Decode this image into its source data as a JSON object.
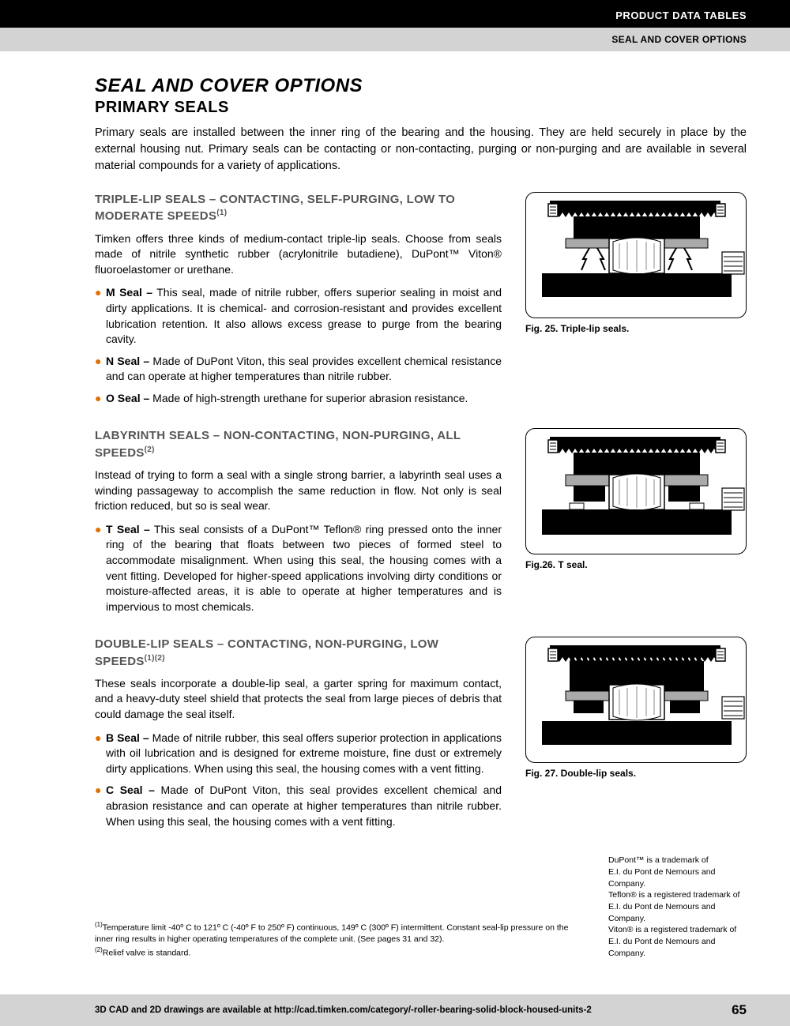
{
  "header": {
    "black": "PRODUCT DATA TABLES",
    "grey": "SEAL AND COVER OPTIONS"
  },
  "title": "SEAL AND COVER OPTIONS",
  "subtitle": "PRIMARY SEALS",
  "intro": "Primary seals are installed between the inner ring of the bearing and the housing. They are held securely in place by the external housing nut. Primary seals can be contacting or non-contacting, purging or non-purging and are available in several material compounds for a variety of applications.",
  "sections": [
    {
      "heading": "TRIPLE-LIP SEALS – CONTACTING, SELF-PURGING, LOW TO MODERATE SPEEDS",
      "heading_sup": "(1)",
      "para": "Timken offers three kinds of medium-contact triple-lip seals. Choose from seals made of nitrile synthetic rubber (acrylonitrile butadiene), DuPont™ Viton® fluoroelastomer or urethane.",
      "bullets": [
        {
          "label": "M Seal –",
          "text": " This seal, made of nitrile rubber, offers superior sealing in moist and dirty applications. It is chemical- and corrosion-resistant and provides excellent lubrication retention. It also allows excess grease to purge from the bearing cavity."
        },
        {
          "label": "N Seal –",
          "text": " Made of DuPont Viton, this seal provides excellent chemical resistance and can operate at higher temperatures than nitrile rubber."
        },
        {
          "label": "O Seal –",
          "text": " Made of high-strength urethane for superior abrasion resistance."
        }
      ],
      "fig_caption": "Fig. 25. Triple-lip seals.",
      "fig_type": "triple"
    },
    {
      "heading": "LABYRINTH SEALS – NON-CONTACTING, NON-PURGING, ALL SPEEDS",
      "heading_sup": "(2)",
      "para": "Instead of trying to form a seal with a single strong barrier, a labyrinth seal uses a winding passageway to accomplish the same reduction in flow. Not only is seal friction reduced, but so is seal wear.",
      "bullets": [
        {
          "label": "T Seal –",
          "text": " This seal consists of a DuPont™ Teflon® ring pressed onto the inner ring of the bearing that floats between two pieces of formed steel to accommodate misalignment. When using this seal, the housing comes with a vent fitting. Developed for higher-speed applications involving dirty conditions or moisture-affected areas, it is able to operate at higher temperatures and is impervious to most chemicals."
        }
      ],
      "fig_caption": "Fig.26. T seal.",
      "fig_type": "labyrinth"
    },
    {
      "heading": "DOUBLE-LIP SEALS – CONTACTING, NON-PURGING, LOW SPEEDS",
      "heading_sup": "(1)(2)",
      "para": "These seals incorporate a double-lip seal, a garter spring for maximum contact, and a heavy-duty steel shield that protects the seal from large pieces of debris that could damage the seal itself.",
      "bullets": [
        {
          "label": "B Seal –",
          "text": " Made of nitrile rubber, this seal offers superior protection in applications with oil lubrication and is designed for extreme moisture, fine dust or extremely dirty applications. When using this seal, the housing comes with a vent fitting."
        },
        {
          "label": "C Seal –",
          "text": " Made of DuPont Viton, this seal provides excellent chemical and abrasion resistance and can operate at higher temperatures than nitrile rubber. When using this seal, the housing comes with a vent fitting."
        }
      ],
      "fig_caption": "Fig. 27. Double-lip seals.",
      "fig_type": "double"
    }
  ],
  "footnotes": {
    "f1": "Temperature limit -40º C to 121º C (-40º F to 250º F) continuous, 149º C (300º F) intermittent. Constant seal-lip pressure on the inner ring results in higher operating temperatures of the complete unit. (See pages 31 and 32).",
    "f2": "Relief valve is standard."
  },
  "trademarks": [
    "DuPont™ is a trademark of",
    "E.I. du Pont de Nemours and Company.",
    "Teflon® is a registered trademark of",
    "E.I. du Pont de Nemours and Company.",
    "Viton® is a registered trademark of",
    "E.I. du Pont de Nemours and Company."
  ],
  "footer": {
    "text": "3D CAD and 2D drawings are available at http://cad.timken.com/category/-roller-bearing-solid-block-housed-units-2",
    "page": "65"
  },
  "diagram_colors": {
    "black": "#000000",
    "grey": "#aaaaaa",
    "hatch": "#888888"
  }
}
